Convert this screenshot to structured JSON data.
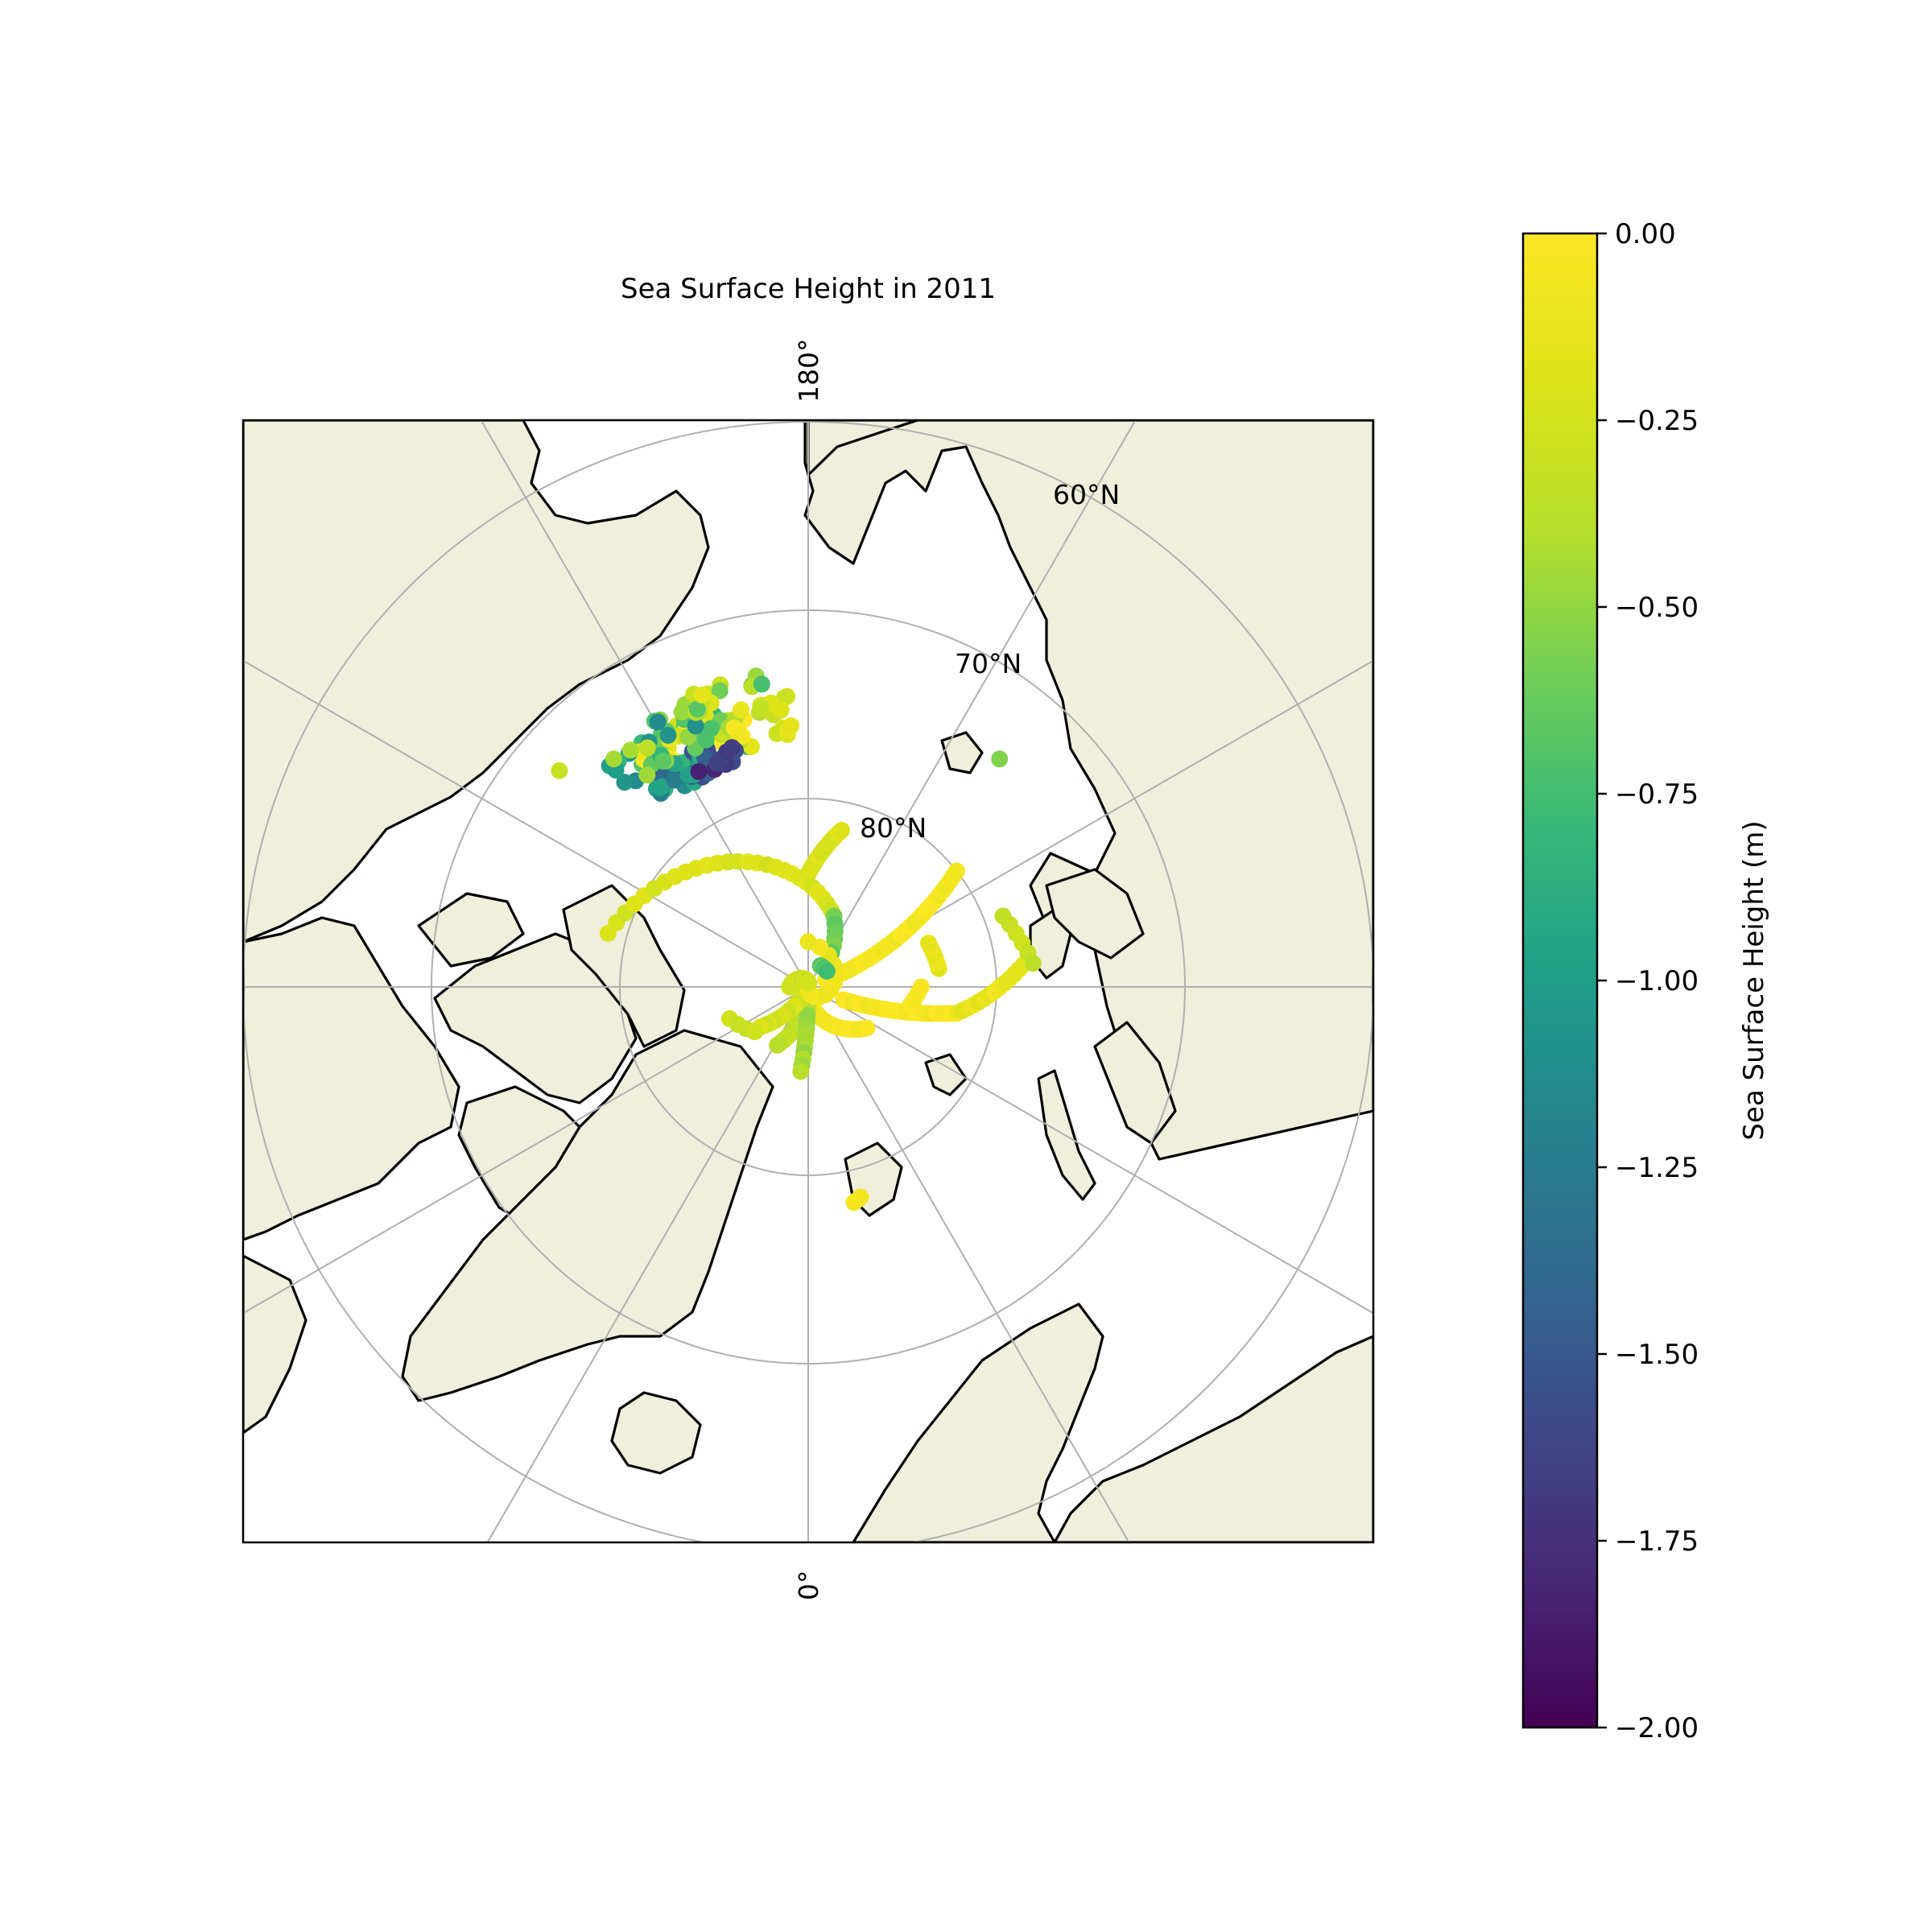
{
  "chart_data": {
    "type": "scatter",
    "title": "Sea Surface Height in 2011",
    "projection": "north-polar-stereographic",
    "colormap": "viridis",
    "grid": true,
    "land_color": "#efefdb",
    "parallel_labels": [
      "60°N",
      "70°N",
      "80°N"
    ],
    "meridian_labels": {
      "top": "180°",
      "bottom": "0°"
    },
    "colorbar": {
      "label": "Sea Surface Height (m)",
      "vmin": -2.0,
      "vmax": 0.0,
      "ticks": [
        "0.00",
        "−0.25",
        "−0.50",
        "−0.75",
        "−1.00",
        "−1.25",
        "−1.50",
        "−1.75",
        "−2.00"
      ],
      "placement": "right"
    },
    "tracks": [
      {
        "start": [
          79,
          -105
        ],
        "end": [
          86,
          160
        ],
        "n": 28,
        "value": -0.22
      },
      {
        "start": [
          86,
          160
        ],
        "end": [
          88.5,
          140
        ],
        "n": 8,
        "value": -0.6
      },
      {
        "start": [
          89,
          110
        ],
        "end": [
          80,
          128
        ],
        "n": 30,
        "value": -0.05
      },
      {
        "start": [
          88,
          70
        ],
        "end": [
          82,
          80
        ],
        "n": 24,
        "value": -0.04
      },
      {
        "start": [
          82,
          80
        ],
        "end": [
          78.5,
          96
        ],
        "n": 14,
        "value": -0.12
      },
      {
        "start": [
          79,
          110
        ],
        "end": [
          78,
          96
        ],
        "n": 6,
        "value": -0.3
      },
      {
        "start": [
          89.6,
          0
        ],
        "end": [
          86.2,
          55
        ],
        "n": 24,
        "value": -0.05
      },
      {
        "start": [
          89.8,
          0
        ],
        "end": [
          86.5,
          -28
        ],
        "n": 18,
        "value": -0.35
      },
      {
        "start": [
          89.8,
          0
        ],
        "end": [
          85.5,
          -5
        ],
        "n": 14,
        "value": -0.45
      },
      {
        "start": [
          89.6,
          -30
        ],
        "end": [
          86.7,
          -50
        ],
        "n": 14,
        "value": -0.25
      },
      {
        "start": [
          85.5,
          -68
        ],
        "end": [
          86.3,
          -50
        ],
        "n": 4,
        "value": -0.3
      },
      {
        "start": [
          84,
          180
        ],
        "end": [
          81.5,
          168
        ],
        "n": 14,
        "value": -0.2
      },
      {
        "start": [
          89.8,
          0
        ],
        "end": [
          87.6,
          180
        ],
        "n": 12,
        "value": -0.1
      },
      {
        "start": [
          89,
          -90
        ],
        "end": [
          89.8,
          170
        ],
        "n": 10,
        "value": -0.3
      },
      {
        "start": [
          78.3,
          12
        ],
        "end": [
          78.5,
          14
        ],
        "n": 3,
        "value": -0.08
      },
      {
        "start": [
          83,
          98
        ],
        "end": [
          83.2,
          110
        ],
        "n": 6,
        "value": -0.15
      },
      {
        "start": [
          88.7,
          150
        ],
        "end": [
          88.7,
          130
        ],
        "n": 6,
        "value": -0.7
      },
      {
        "start": [
          84.5,
          80
        ],
        "end": [
          84.0,
          90
        ],
        "n": 4,
        "value": -0.05
      }
    ],
    "clusters": [
      {
        "center": [
          75.7,
          -155
        ],
        "spread": [
          1.5,
          12
        ],
        "n": 70,
        "value": -0.35,
        "jitter": 0.5
      },
      {
        "center": [
          76.8,
          -150
        ],
        "spread": [
          0.8,
          8
        ],
        "n": 35,
        "value": -1.2,
        "jitter": 0.4
      },
      {
        "center": [
          77,
          -158
        ],
        "spread": [
          0.5,
          5
        ],
        "n": 10,
        "value": -1.65,
        "jitter": 0.2
      },
      {
        "center": [
          74.8,
          -148
        ],
        "spread": [
          1.2,
          10
        ],
        "n": 30,
        "value": -0.75,
        "jitter": 0.4
      },
      {
        "center": [
          73.8,
          -160
        ],
        "spread": [
          0.6,
          4
        ],
        "n": 10,
        "value": -0.4,
        "jitter": 0.3
      },
      {
        "center": [
          75,
          -170
        ],
        "spread": [
          0.5,
          6
        ],
        "n": 12,
        "value": -0.2,
        "jitter": 0.2
      },
      {
        "center": [
          76.5,
          -175
        ],
        "spread": [
          0.4,
          3
        ],
        "n": 6,
        "value": -0.25,
        "jitter": 0.2
      },
      {
        "center": [
          73.5,
          -170
        ],
        "spread": [
          0.3,
          2
        ],
        "n": 4,
        "value": -0.55,
        "jitter": 0.2
      }
    ],
    "points": [
      [
        72.5,
        -131,
        -0.3
      ],
      [
        73.5,
        -160,
        -0.15
      ],
      [
        74.2,
        140,
        -0.55
      ]
    ]
  }
}
